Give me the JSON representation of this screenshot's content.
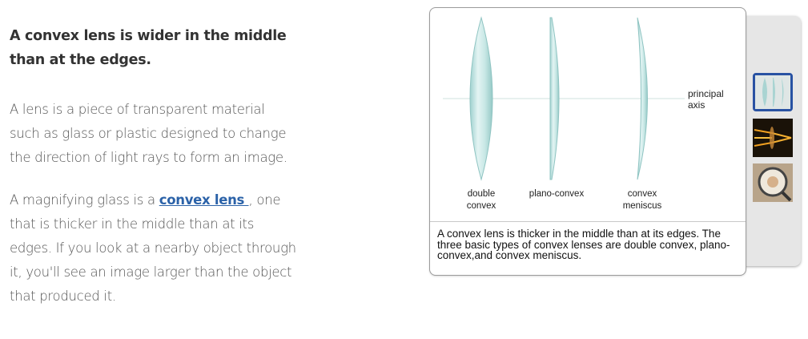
{
  "article": {
    "heading": "A convex lens is wider in the middle than at the edges.",
    "para1": "A lens is a piece of transparent material such as glass or plastic designed to change the direction of light rays to form an image.",
    "para2_before": "A magnifying glass is a ",
    "para2_link": "convex lens ",
    "para2_after": ", one that is thicker in the middle than at its edges. If you look at a nearby object through it, you'll see an image larger than the object that produced it."
  },
  "figure": {
    "axis_label": "principal axis",
    "lens_labels": [
      "double convex",
      "plano-convex",
      "convex meniscus"
    ],
    "caption": "A convex lens is thicker in the middle than at its edges. The three basic types of convex lenses are double convex, plano-convex,and convex meniscus."
  },
  "gallery": {
    "thumbnails": [
      "convex lens types",
      "light rays through lens",
      "magnifying glass"
    ],
    "selected_index": 0
  },
  "colors": {
    "lens": "#bfe2e0",
    "lens_edge": "#8fc4c2",
    "link": "#2b62a8",
    "selected_border": "#2952a3"
  }
}
